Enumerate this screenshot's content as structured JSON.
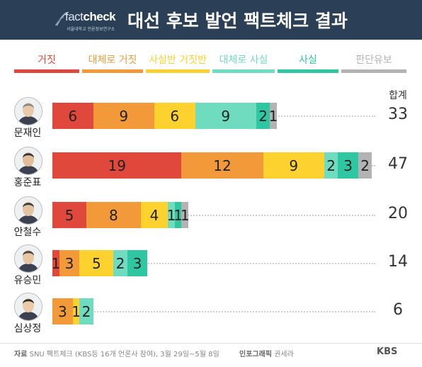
{
  "header": {
    "logo_main": "fact",
    "logo_accent": "check",
    "logo_sub": "서울대학교 언론정보연구소",
    "title": "대선 후보 발언 팩트체크 결과"
  },
  "colors": {
    "false": "#e0483b",
    "mostly_false": "#f2993a",
    "half": "#fdd22f",
    "mostly_true": "#6fdcc0",
    "true": "#2ec7a2",
    "undetermined": "#b3b3b3"
  },
  "chart_data": {
    "type": "bar",
    "stacked": true,
    "orientation": "horizontal",
    "title": "대선 후보 발언 팩트체크 결과",
    "categories": [
      "거짓",
      "대체로 거짓",
      "사실반 거짓반",
      "대체로 사실",
      "사실",
      "판단유보"
    ],
    "total_label": "합계",
    "series": [
      {
        "name": "문재인",
        "values": [
          6,
          9,
          6,
          9,
          2,
          1
        ],
        "total": 33
      },
      {
        "name": "홍준표",
        "values": [
          19,
          12,
          9,
          2,
          3,
          2
        ],
        "total": 47
      },
      {
        "name": "안철수",
        "values": [
          5,
          8,
          4,
          1,
          1,
          1
        ],
        "total": 20
      },
      {
        "name": "유승민",
        "values": [
          1,
          3,
          5,
          2,
          3,
          0
        ],
        "total": 14
      },
      {
        "name": "심상정",
        "values": [
          0,
          3,
          1,
          2,
          0,
          0
        ],
        "total": 6
      }
    ],
    "xlim": [
      0,
      47
    ],
    "legend_position": "top"
  },
  "footer": {
    "source_label": "자료",
    "source_text": "SNU 팩트체크 (KBS등 16개 언론사 참여), 3월 29일~5월 8일",
    "graphic_label": "인포그래픽",
    "graphic_author": "권세라",
    "brand": "KBS"
  }
}
